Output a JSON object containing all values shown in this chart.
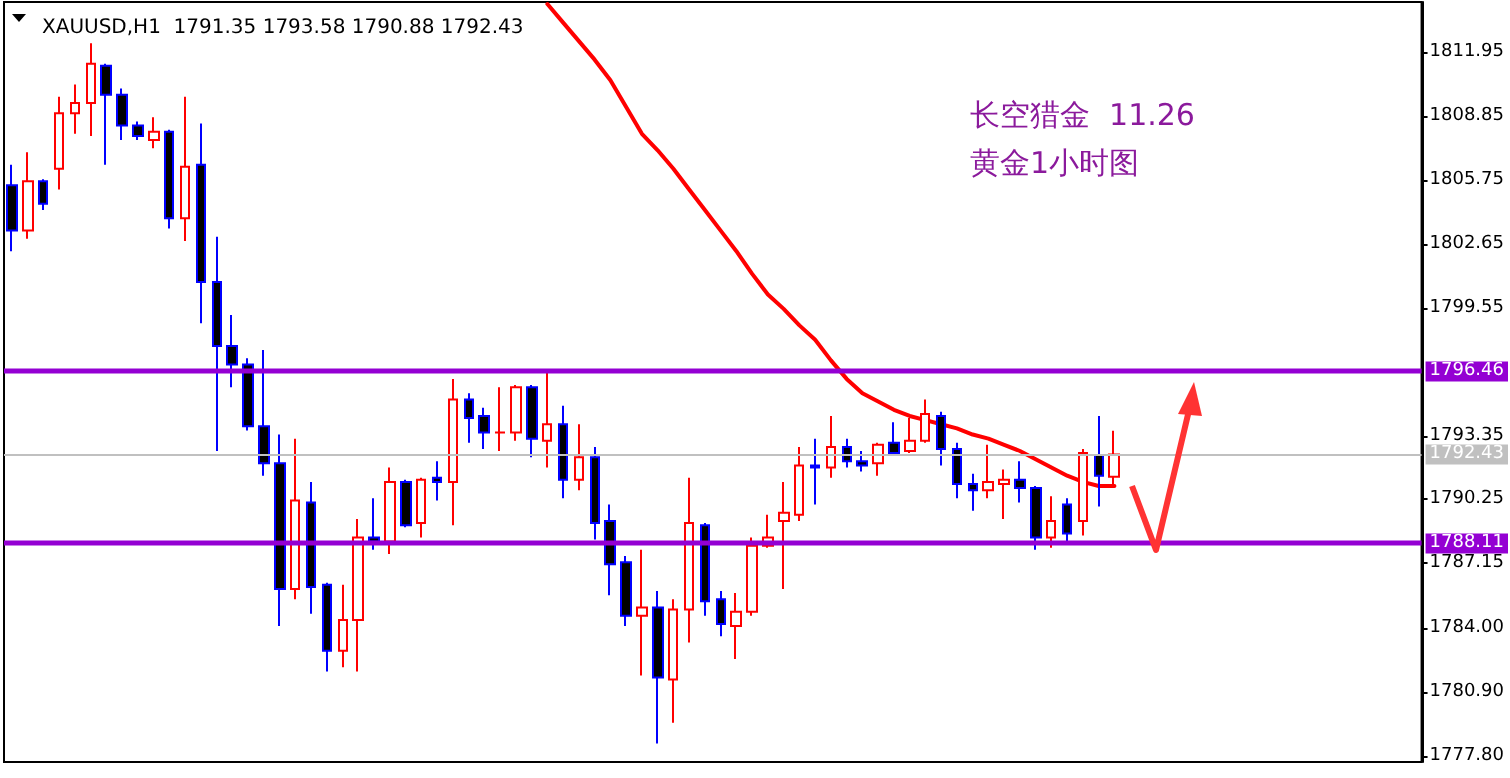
{
  "chart_data": {
    "type": "candlestick",
    "title": "XAUUSD,H1  1791.35 1793.58 1790.88 1792.43",
    "annotations": [
      "长空猎金  11.26",
      "黄金1小时图"
    ],
    "categories": [
      null,
      null,
      null,
      null,
      null,
      null,
      null,
      null,
      null,
      null,
      null,
      null,
      null,
      null,
      null,
      null,
      null,
      null,
      null,
      null,
      null,
      null,
      null,
      null,
      null,
      null,
      null,
      null,
      null,
      null,
      null,
      null,
      null,
      null,
      null,
      null,
      null,
      null,
      null,
      null,
      null,
      null,
      null,
      null,
      null,
      null,
      null,
      null,
      null,
      null,
      null,
      null,
      null,
      null,
      null,
      null,
      null,
      null,
      null,
      null,
      null,
      null,
      null,
      null,
      null,
      null,
      null,
      null,
      null,
      null,
      null,
      null,
      null,
      null,
      null,
      null,
      null,
      null,
      null,
      null,
      null,
      null,
      null,
      null,
      null,
      null,
      null,
      null,
      null,
      null
    ],
    "ohlc": [
      [
        1805.5,
        1806.5,
        1802.3,
        1803.3
      ],
      [
        1803.3,
        1807.1,
        1802.9,
        1805.7
      ],
      [
        1805.7,
        1805.8,
        1804.3,
        1804.6
      ],
      [
        1806.3,
        1809.8,
        1805.3,
        1809.0
      ],
      [
        1809.0,
        1810.4,
        1808.0,
        1809.5
      ],
      [
        1809.5,
        1812.4,
        1807.9,
        1811.4
      ],
      [
        1811.3,
        1811.4,
        1806.5,
        1809.9
      ],
      [
        1809.9,
        1810.2,
        1807.7,
        1808.4
      ],
      [
        1808.4,
        1808.6,
        1807.7,
        1807.9
      ],
      [
        1807.7,
        1808.8,
        1807.3,
        1808.1
      ],
      [
        1808.1,
        1808.2,
        1803.4,
        1803.9
      ],
      [
        1803.9,
        1809.8,
        1802.8,
        1806.4
      ],
      [
        1806.5,
        1808.5,
        1798.8,
        1800.8
      ],
      [
        1800.8,
        1803.0,
        1792.6,
        1797.7
      ],
      [
        1797.7,
        1799.2,
        1795.7,
        1796.8
      ],
      [
        1796.8,
        1797.1,
        1793.6,
        1793.8
      ],
      [
        1793.8,
        1797.5,
        1791.4,
        1792.0
      ],
      [
        1792.0,
        1793.4,
        1784.1,
        1785.9
      ],
      [
        1785.9,
        1793.2,
        1785.4,
        1790.2
      ],
      [
        1790.1,
        1791.1,
        1784.7,
        1786.0
      ],
      [
        1786.1,
        1786.2,
        1781.9,
        1782.9
      ],
      [
        1782.9,
        1786.1,
        1782.1,
        1784.4
      ],
      [
        1784.4,
        1789.3,
        1781.9,
        1788.4
      ],
      [
        1788.4,
        1790.3,
        1787.8,
        1788.2
      ],
      [
        1788.2,
        1791.8,
        1787.6,
        1791.1
      ],
      [
        1791.1,
        1791.2,
        1788.9,
        1789.0
      ],
      [
        1789.1,
        1791.3,
        1788.4,
        1791.2
      ],
      [
        1791.3,
        1792.1,
        1790.2,
        1791.1
      ],
      [
        1791.1,
        1796.1,
        1789.0,
        1795.1
      ],
      [
        1795.1,
        1795.4,
        1793.0,
        1794.2
      ],
      [
        1794.3,
        1794.7,
        1792.7,
        1793.5
      ],
      [
        1793.5,
        1795.7,
        1792.6,
        1793.5
      ],
      [
        1793.5,
        1795.8,
        1793.1,
        1795.7
      ],
      [
        1795.7,
        1795.8,
        1792.3,
        1793.2
      ],
      [
        1793.1,
        1796.5,
        1791.8,
        1793.9
      ],
      [
        1793.9,
        1794.8,
        1790.3,
        1791.2
      ],
      [
        1791.2,
        1793.9,
        1790.7,
        1792.3
      ],
      [
        1792.3,
        1792.8,
        1788.3,
        1789.1
      ],
      [
        1789.2,
        1790.0,
        1785.6,
        1787.1
      ],
      [
        1787.2,
        1787.5,
        1784.1,
        1784.6
      ],
      [
        1784.6,
        1787.8,
        1781.7,
        1785.0
      ],
      [
        1785.0,
        1785.8,
        1778.4,
        1781.6
      ],
      [
        1781.5,
        1785.4,
        1779.4,
        1784.9
      ],
      [
        1784.9,
        1791.3,
        1783.3,
        1789.1
      ],
      [
        1789.0,
        1789.1,
        1784.6,
        1785.3
      ],
      [
        1785.4,
        1785.8,
        1783.6,
        1784.2
      ],
      [
        1784.1,
        1785.7,
        1782.5,
        1784.8
      ],
      [
        1784.8,
        1788.4,
        1784.6,
        1788.0
      ],
      [
        1788.0,
        1789.5,
        1787.9,
        1788.4
      ],
      [
        1789.2,
        1791.1,
        1785.9,
        1789.6
      ],
      [
        1789.5,
        1792.8,
        1789.2,
        1791.9
      ],
      [
        1791.9,
        1793.2,
        1790.0,
        1791.8
      ],
      [
        1791.8,
        1794.3,
        1791.3,
        1792.8
      ],
      [
        1792.8,
        1793.2,
        1791.8,
        1792.1
      ],
      [
        1792.1,
        1792.6,
        1791.6,
        1791.9
      ],
      [
        1792.0,
        1793.0,
        1791.4,
        1792.9
      ],
      [
        1793.0,
        1794.0,
        1792.4,
        1792.5
      ],
      [
        1792.6,
        1794.2,
        1792.5,
        1793.1
      ],
      [
        1793.1,
        1795.1,
        1793.0,
        1794.4
      ],
      [
        1794.3,
        1794.5,
        1791.9,
        1792.7
      ],
      [
        1792.7,
        1793.0,
        1790.3,
        1791.0
      ],
      [
        1791.0,
        1791.5,
        1789.7,
        1790.7
      ],
      [
        1790.7,
        1792.9,
        1790.3,
        1791.1
      ],
      [
        1791.0,
        1791.7,
        1789.3,
        1791.2
      ],
      [
        1791.2,
        1792.1,
        1790.1,
        1790.8
      ],
      [
        1790.8,
        1790.9,
        1787.8,
        1788.4
      ],
      [
        1788.4,
        1790.4,
        1787.9,
        1789.2
      ],
      [
        1790.0,
        1790.3,
        1788.2,
        1788.6
      ],
      [
        1789.2,
        1792.7,
        1788.5,
        1792.5
      ],
      [
        1792.4,
        1794.3,
        1789.9,
        1791.4
      ],
      [
        1791.35,
        1793.58,
        1790.88,
        1792.43
      ],
      null,
      null,
      null,
      null,
      null,
      null,
      null,
      null,
      null,
      null,
      null,
      null,
      null,
      null,
      null,
      null,
      null,
      null,
      null
    ],
    "series": [
      {
        "type": "line",
        "color": "#ff0000",
        "values": [
          null,
          null,
          null,
          null,
          null,
          null,
          null,
          null,
          null,
          null,
          null,
          null,
          null,
          null,
          null,
          null,
          null,
          null,
          null,
          null,
          null,
          null,
          null,
          null,
          null,
          null,
          null,
          null,
          null,
          null,
          null,
          null,
          null,
          null,
          1814.3,
          1813.4,
          1812.5,
          1811.6,
          1810.6,
          1809.3,
          1808.0,
          1807.2,
          1806.3,
          1805.3,
          1804.3,
          1803.3,
          1802.3,
          1801.2,
          1800.2,
          1799.5,
          1798.7,
          1798.0,
          1797.0,
          1796.1,
          1795.4,
          1795.0,
          1794.6,
          1794.3,
          1794.1,
          1793.9,
          1793.7,
          1793.4,
          1793.2,
          1792.9,
          1792.6,
          1792.2,
          1791.8,
          1791.4,
          1791.1,
          1790.9,
          1790.9,
          null,
          null,
          null,
          null,
          null,
          null,
          null,
          null,
          null,
          null,
          null,
          null,
          null,
          null,
          null,
          null,
          null,
          null,
          null
        ]
      }
    ],
    "marker": "none",
    "line_style": "solid",
    "ylim": [
      1777.5,
      1814.4
    ],
    "yticks": [
      {
        "value": 1777.8,
        "label": "1777.80"
      },
      {
        "value": 1780.9,
        "label": "1780.90"
      },
      {
        "value": 1784,
        "label": "1784.00"
      },
      {
        "value": 1787.15,
        "label": "1787.15"
      },
      {
        "value": 1790.25,
        "label": "1790.25"
      },
      {
        "value": 1793.35,
        "label": "1793.35"
      },
      {
        "value": 1799.55,
        "label": "1799.55"
      },
      {
        "value": 1802.65,
        "label": "1802.65"
      },
      {
        "value": 1805.75,
        "label": "1805.75"
      },
      {
        "value": 1808.85,
        "label": "1808.85"
      },
      {
        "value": 1811.95,
        "label": "1811.95"
      }
    ],
    "ref_lines": [
      {
        "axis": "y",
        "value": 1796.46,
        "label": "1796.46",
        "color": "#9400d3"
      },
      {
        "axis": "y",
        "value": 1788.11,
        "label": "1788.11",
        "color": "#9400d3"
      },
      {
        "axis": "y",
        "value": 1792.43,
        "label": "1792.43",
        "color": "#c0c0c0"
      }
    ],
    "grid": false
  }
}
